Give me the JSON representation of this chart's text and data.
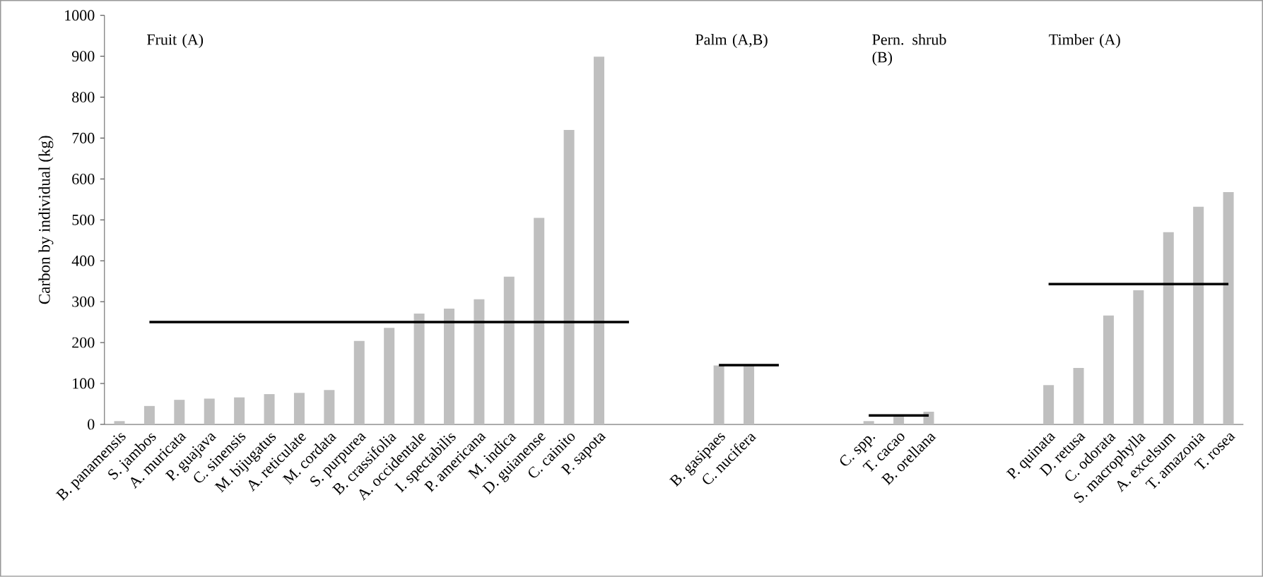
{
  "chart_data": {
    "type": "bar",
    "ylabel": "Carbon by individual (kg)",
    "categories": [
      "B. panamensis",
      "S. jambos",
      "A. muricata",
      "P. guajava",
      "C. sinensis",
      "M. bijugatus",
      "A. reticulate",
      "M. cordata",
      "S. purpurea",
      "B. crassifolia",
      "A. occidentale",
      "I. spectabilis",
      "P. americana",
      "M. indica",
      "D. guianense",
      "C. cainito",
      "P. sapota",
      null,
      null,
      null,
      "B. gasipaes",
      "C. nucifera",
      null,
      null,
      null,
      "C. spp.",
      "T. cacao",
      "B. orellana",
      null,
      null,
      null,
      "P. quinata",
      "D. retusa",
      "C. odorata",
      "S. macrophylla",
      "A. excelsum",
      "T. amazonia",
      "T.  rosea"
    ],
    "series": [
      {
        "color": "#bfbfbf",
        "values": [
          8,
          45,
          60,
          63,
          66,
          74,
          77,
          84,
          204,
          236,
          271,
          283,
          306,
          361,
          505,
          720,
          899,
          null,
          null,
          null,
          144,
          146,
          null,
          null,
          null,
          8,
          22,
          31,
          null,
          null,
          null,
          96,
          138,
          266,
          328,
          470,
          532,
          568
        ]
      },
      {
        "type": "line",
        "color": "#000000",
        "values": [
          null,
          250,
          250,
          250,
          250,
          250,
          250,
          250,
          250,
          250,
          250,
          250,
          250,
          250,
          250,
          250,
          250,
          250,
          null,
          null,
          145,
          145,
          145,
          null,
          null,
          22,
          22,
          22,
          null,
          null,
          null,
          343,
          343,
          343,
          343,
          343,
          343,
          343
        ]
      }
    ],
    "ylim": [
      0,
      1000
    ],
    "yticks": [
      0,
      100,
      200,
      300,
      400,
      500,
      600,
      700,
      800,
      900,
      1000
    ],
    "annotations": [
      "Fruit (A)",
      "Palm (A,B)",
      "Pern. shrub (B)",
      "Timber (A)"
    ],
    "grid": false,
    "marker": "none",
    "line_style": "solid"
  }
}
